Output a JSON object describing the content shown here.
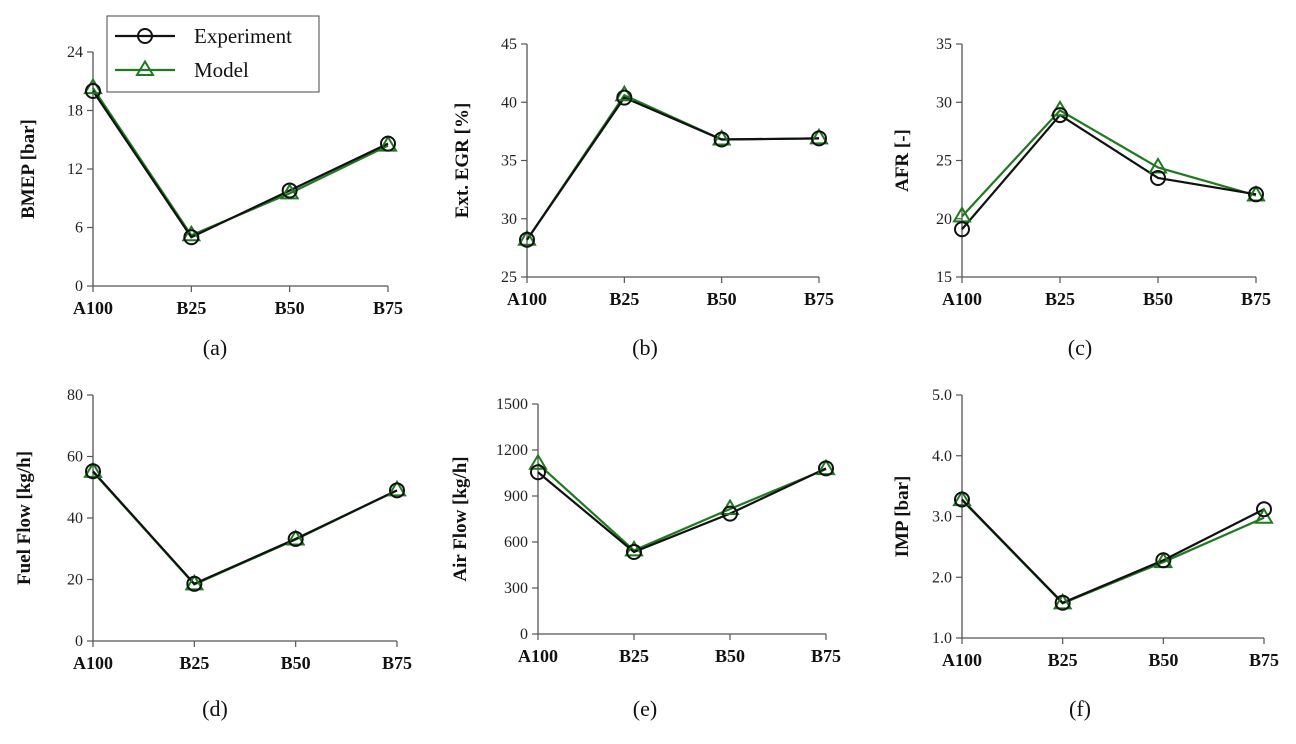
{
  "colors": {
    "experiment": "#111111",
    "model": "#1f7a1f",
    "axis": "#555555"
  },
  "legend": {
    "experiment_label": "Experiment",
    "model_label": "Model"
  },
  "chart_data": [
    {
      "id": "a",
      "type": "line",
      "caption": "(a)",
      "ylabel": "BMEP [bar]",
      "categories": [
        "A100",
        "B25",
        "B50",
        "B75"
      ],
      "ylim": [
        0,
        24
      ],
      "yticks": [
        0,
        6,
        12,
        18,
        24
      ],
      "ytick_labels": [
        "0",
        "6",
        "12",
        "18",
        "24"
      ],
      "series": [
        {
          "name": "Experiment",
          "marker": "circle",
          "values": [
            20.0,
            5.0,
            9.8,
            14.6
          ]
        },
        {
          "name": "Model",
          "marker": "triangle",
          "values": [
            20.3,
            5.2,
            9.5,
            14.4
          ]
        }
      ]
    },
    {
      "id": "b",
      "type": "line",
      "caption": "(b)",
      "ylabel": "Ext. EGR [%]",
      "categories": [
        "A100",
        "B25",
        "B50",
        "B75"
      ],
      "ylim": [
        25,
        45
      ],
      "yticks": [
        25,
        30,
        35,
        40,
        45
      ],
      "ytick_labels": [
        "25",
        "30",
        "35",
        "40",
        "45"
      ],
      "series": [
        {
          "name": "Experiment",
          "marker": "circle",
          "values": [
            28.2,
            40.4,
            36.8,
            36.9
          ]
        },
        {
          "name": "Model",
          "marker": "triangle",
          "values": [
            28.2,
            40.6,
            36.8,
            36.9
          ]
        }
      ]
    },
    {
      "id": "c",
      "type": "line",
      "caption": "(c)",
      "ylabel": "AFR [-]",
      "categories": [
        "A100",
        "B25",
        "B50",
        "B75"
      ],
      "ylim": [
        15,
        35
      ],
      "yticks": [
        15,
        20,
        25,
        30,
        35
      ],
      "ytick_labels": [
        "15",
        "20",
        "25",
        "30",
        "35"
      ],
      "series": [
        {
          "name": "Experiment",
          "marker": "circle",
          "values": [
            19.1,
            28.9,
            23.5,
            22.1
          ]
        },
        {
          "name": "Model",
          "marker": "triangle",
          "values": [
            20.2,
            29.3,
            24.4,
            22.0
          ]
        }
      ]
    },
    {
      "id": "d",
      "type": "line",
      "caption": "(d)",
      "ylabel": "Fuel Flow [kg/h]",
      "categories": [
        "A100",
        "B25",
        "B50",
        "B75"
      ],
      "ylim": [
        0,
        80
      ],
      "yticks": [
        0,
        20,
        40,
        60,
        80
      ],
      "ytick_labels": [
        "0",
        "20",
        "40",
        "60",
        "80"
      ],
      "series": [
        {
          "name": "Experiment",
          "marker": "circle",
          "values": [
            55.2,
            18.6,
            33.2,
            49.0
          ]
        },
        {
          "name": "Model",
          "marker": "triangle",
          "values": [
            55.0,
            18.4,
            33.0,
            49.0
          ]
        }
      ]
    },
    {
      "id": "e",
      "type": "line",
      "caption": "(e)",
      "ylabel": "Air Flow [kg/h]",
      "categories": [
        "A100",
        "B25",
        "B50",
        "B75"
      ],
      "ylim": [
        0,
        1500
      ],
      "yticks": [
        0,
        300,
        600,
        900,
        1200,
        1500
      ],
      "ytick_labels": [
        "0",
        "300",
        "600",
        "900",
        "1200",
        "1500"
      ],
      "series": [
        {
          "name": "Experiment",
          "marker": "circle",
          "values": [
            1055,
            535,
            785,
            1080
          ]
        },
        {
          "name": "Model",
          "marker": "triangle",
          "values": [
            1110,
            545,
            815,
            1075
          ]
        }
      ]
    },
    {
      "id": "f",
      "type": "line",
      "caption": "(f)",
      "ylabel": "IMP [bar]",
      "categories": [
        "A100",
        "B25",
        "B50",
        "B75"
      ],
      "ylim": [
        1.0,
        5.0
      ],
      "yticks": [
        1.0,
        2.0,
        3.0,
        4.0,
        5.0
      ],
      "ytick_labels": [
        "1.0",
        "2.0",
        "3.0",
        "4.0",
        "5.0"
      ],
      "series": [
        {
          "name": "Experiment",
          "marker": "circle",
          "values": [
            3.28,
            1.58,
            2.28,
            3.12
          ]
        },
        {
          "name": "Model",
          "marker": "triangle",
          "values": [
            3.27,
            1.57,
            2.25,
            2.98
          ]
        }
      ]
    }
  ]
}
